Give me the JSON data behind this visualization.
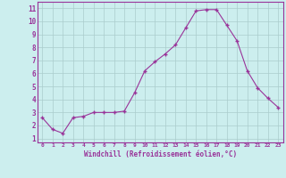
{
  "x": [
    0,
    1,
    2,
    3,
    4,
    5,
    6,
    7,
    8,
    9,
    10,
    11,
    12,
    13,
    14,
    15,
    16,
    17,
    18,
    19,
    20,
    21,
    22,
    23
  ],
  "y": [
    2.6,
    1.7,
    1.4,
    2.6,
    2.7,
    3.0,
    3.0,
    3.0,
    3.1,
    4.5,
    6.2,
    6.9,
    7.5,
    8.2,
    9.5,
    10.8,
    10.9,
    10.9,
    9.7,
    8.5,
    6.2,
    4.9,
    4.1,
    3.4
  ],
  "line_color": "#993399",
  "marker": "+",
  "markersize": 3,
  "markeredgewidth": 1.0,
  "linewidth": 0.8,
  "background_color": "#cceeee",
  "grid_color": "#aacccc",
  "xlabel": "Windchill (Refroidissement éolien,°C)",
  "xlabel_color": "#993399",
  "ylabel_ticks": [
    1,
    2,
    3,
    4,
    5,
    6,
    7,
    8,
    9,
    10,
    11
  ],
  "xtick_labels": [
    "0",
    "1",
    "2",
    "3",
    "4",
    "5",
    "6",
    "7",
    "8",
    "9",
    "10",
    "11",
    "12",
    "13",
    "14",
    "15",
    "16",
    "17",
    "18",
    "19",
    "20",
    "21",
    "22",
    "23"
  ],
  "ylim": [
    0.7,
    11.5
  ],
  "xlim": [
    -0.5,
    23.5
  ],
  "tick_color": "#993399",
  "spine_color": "#993399",
  "fig_bg": "#cceeee"
}
